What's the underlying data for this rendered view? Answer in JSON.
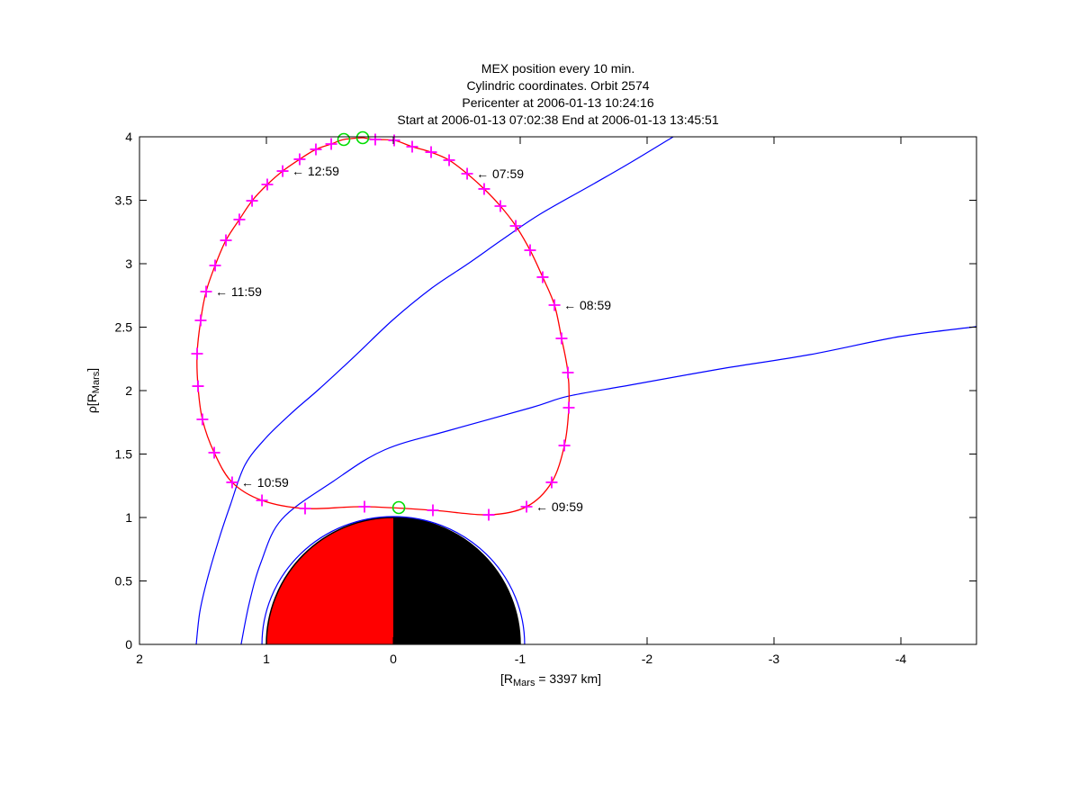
{
  "figure": {
    "title_lines": [
      "MEX position every 10 min.",
      "Cylindric coordinates. Orbit 2574",
      "Pericenter at 2006-01-13 10:24:16",
      "Start at 2006-01-13 07:02:38 End at 2006-01-13 13:45:51"
    ]
  },
  "axes": {
    "xlabel": {
      "prefix": "[R",
      "sub": "Mars",
      "suffix": " = 3397 km]"
    },
    "ylabel": {
      "prefix": "ρ[R",
      "sub": "Mars",
      "suffix": "]"
    },
    "xlim": [
      2,
      -4.596
    ],
    "ylim": [
      0,
      4
    ],
    "x_axis_reversed": true,
    "x_ticks": [
      {
        "value": 2,
        "label": "2"
      },
      {
        "value": 1,
        "label": "1"
      },
      {
        "value": 0,
        "label": "0"
      },
      {
        "value": -1,
        "label": "-1"
      },
      {
        "value": -2,
        "label": "-2"
      },
      {
        "value": -3,
        "label": "-3"
      },
      {
        "value": -4,
        "label": "-4"
      }
    ],
    "y_ticks": [
      {
        "value": 0,
        "label": "0"
      },
      {
        "value": 0.5,
        "label": "0.5"
      },
      {
        "value": 1,
        "label": "1"
      },
      {
        "value": 1.5,
        "label": "1.5"
      },
      {
        "value": 2,
        "label": "2"
      },
      {
        "value": 2.5,
        "label": "2.5"
      },
      {
        "value": 3,
        "label": "3"
      },
      {
        "value": 3.5,
        "label": "3.5"
      },
      {
        "value": 4,
        "label": "4"
      }
    ]
  },
  "colors": {
    "orbit": "#ff0000",
    "orbit_marker": "#ff00ff",
    "event_marker": "#00dd00",
    "boundary": "#0000ff",
    "axis": "#000000",
    "mars_day": "#ff0000",
    "mars_night": "#000000"
  },
  "mars": {
    "radius": 1.0,
    "day_side": "left",
    "night_side": "right"
  },
  "chart_data": {
    "type": "line",
    "title": "MEX position every 10 min. Cylindric coordinates. Orbit 2574",
    "xlabel": "[R_Mars = 3397 km]",
    "ylabel": "rho [R_Mars]",
    "xlim": [
      2,
      -4.596
    ],
    "ylim": [
      0,
      4
    ],
    "grid": false,
    "legend": "none",
    "arrow_prefix": "←",
    "series": [
      {
        "name": "mex-orbit",
        "color": "#ff0000",
        "marker": "+",
        "marker_color": "#ff00ff",
        "closed": true,
        "skip_end_markers": true,
        "points": [
          [
            0.241,
            3.993
          ],
          [
            0.142,
            3.979
          ],
          [
            -0.007,
            3.972
          ],
          [
            -0.149,
            3.922
          ],
          [
            -0.298,
            3.879
          ],
          [
            -0.44,
            3.816
          ],
          [
            -0.582,
            3.709
          ],
          [
            -0.716,
            3.589
          ],
          [
            -0.844,
            3.454
          ],
          [
            -0.965,
            3.298
          ],
          [
            -1.078,
            3.106
          ],
          [
            -1.177,
            2.894
          ],
          [
            -1.27,
            2.674
          ],
          [
            -1.326,
            2.411
          ],
          [
            -1.376,
            2.142
          ],
          [
            -1.383,
            1.865
          ],
          [
            -1.348,
            1.567
          ],
          [
            -1.248,
            1.277
          ],
          [
            -1.05,
            1.085
          ],
          [
            -0.752,
            1.021
          ],
          [
            -0.312,
            1.057
          ],
          [
            0.227,
            1.085
          ],
          [
            0.695,
            1.071
          ],
          [
            1.035,
            1.135
          ],
          [
            1.27,
            1.277
          ],
          [
            1.411,
            1.511
          ],
          [
            1.504,
            1.773
          ],
          [
            1.539,
            2.035
          ],
          [
            1.546,
            2.291
          ],
          [
            1.518,
            2.553
          ],
          [
            1.475,
            2.78
          ],
          [
            1.404,
            2.986
          ],
          [
            1.319,
            3.184
          ],
          [
            1.213,
            3.348
          ],
          [
            1.113,
            3.496
          ],
          [
            0.993,
            3.624
          ],
          [
            0.872,
            3.73
          ],
          [
            0.738,
            3.823
          ],
          [
            0.61,
            3.901
          ],
          [
            0.489,
            3.943
          ],
          [
            0.39,
            3.979
          ]
        ]
      },
      {
        "name": "bow-shock",
        "color": "#0000ff",
        "marker": "none",
        "points": [
          [
            1.553,
            0.0
          ],
          [
            1.525,
            0.255
          ],
          [
            1.468,
            0.504
          ],
          [
            1.376,
            0.823
          ],
          [
            1.284,
            1.099
          ],
          [
            1.17,
            1.411
          ],
          [
            1.007,
            1.624
          ],
          [
            0.794,
            1.83
          ],
          [
            0.582,
            2.014
          ],
          [
            0.298,
            2.277
          ],
          [
            0.0,
            2.56
          ],
          [
            -0.305,
            2.809
          ],
          [
            -0.589,
            3.0
          ],
          [
            -0.872,
            3.199
          ],
          [
            -1.156,
            3.39
          ],
          [
            -1.582,
            3.631
          ],
          [
            -1.865,
            3.794
          ],
          [
            -2.206,
            4.0
          ]
        ]
      },
      {
        "name": "magnetic-pileup-boundary",
        "color": "#0000ff",
        "marker": "none",
        "points": [
          [
            1.199,
            0.0
          ],
          [
            1.135,
            0.326
          ],
          [
            1.043,
            0.645
          ],
          [
            0.879,
            0.986
          ],
          [
            0.475,
            1.284
          ],
          [
            0.071,
            1.532
          ],
          [
            -0.447,
            1.688
          ],
          [
            -1.085,
            1.865
          ],
          [
            -1.383,
            1.957
          ],
          [
            -1.865,
            2.043
          ],
          [
            -2.574,
            2.17
          ],
          [
            -3.284,
            2.284
          ],
          [
            -3.993,
            2.426
          ],
          [
            -4.596,
            2.504
          ]
        ]
      }
    ],
    "inner_boundary_arc": {
      "name": "near-mars-boundary",
      "color": "#0000ff",
      "rx": 1.035,
      "ry": 1.007
    },
    "event_markers": [
      {
        "name": "orbit-start",
        "x": 0.241,
        "rho": 3.993
      },
      {
        "name": "orbit-end",
        "x": 0.39,
        "rho": 3.979
      },
      {
        "name": "pericenter",
        "x": -0.043,
        "rho": 1.078
      }
    ],
    "annotations": [
      {
        "text": "07:59",
        "x": -0.582,
        "rho": 3.709
      },
      {
        "text": "08:59",
        "x": -1.27,
        "rho": 2.674
      },
      {
        "text": "09:59",
        "x": -1.05,
        "rho": 1.085
      },
      {
        "text": "10:59",
        "x": 1.27,
        "rho": 1.277
      },
      {
        "text": "11:59",
        "x": 1.475,
        "rho": 2.78
      },
      {
        "text": "12:59",
        "x": 0.872,
        "rho": 3.73
      }
    ]
  }
}
